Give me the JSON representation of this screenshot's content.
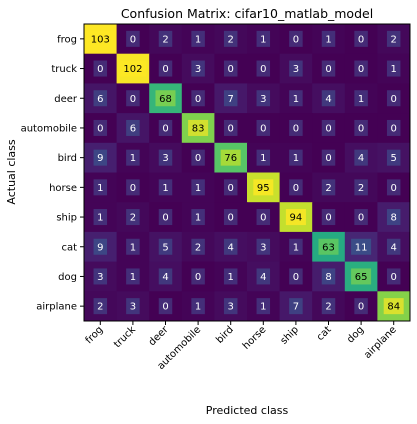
{
  "chart_data": {
    "type": "heatmap",
    "title": "Confusion Matrix: cifar10_matlab_model",
    "xlabel": "Predicted class",
    "ylabel": "Actual class",
    "categories": [
      "frog",
      "truck",
      "deer",
      "automobile",
      "bird",
      "horse",
      "ship",
      "cat",
      "dog",
      "airplane"
    ],
    "matrix": [
      [
        103,
        0,
        2,
        1,
        2,
        1,
        0,
        1,
        0,
        2
      ],
      [
        0,
        102,
        0,
        3,
        0,
        0,
        3,
        0,
        0,
        1
      ],
      [
        6,
        0,
        68,
        0,
        7,
        3,
        1,
        4,
        1,
        0
      ],
      [
        0,
        6,
        0,
        83,
        0,
        0,
        0,
        0,
        0,
        0
      ],
      [
        9,
        1,
        3,
        0,
        76,
        1,
        1,
        0,
        4,
        5
      ],
      [
        1,
        0,
        1,
        1,
        0,
        95,
        0,
        2,
        2,
        0
      ],
      [
        1,
        2,
        0,
        1,
        0,
        0,
        94,
        0,
        0,
        8
      ],
      [
        9,
        1,
        5,
        2,
        4,
        3,
        1,
        63,
        11,
        4
      ],
      [
        3,
        1,
        4,
        0,
        1,
        4,
        0,
        8,
        65,
        0
      ],
      [
        2,
        3,
        0,
        1,
        3,
        1,
        7,
        2,
        0,
        84
      ]
    ],
    "value_range": [
      0,
      103
    ],
    "colormap": "viridis",
    "grid": false
  }
}
